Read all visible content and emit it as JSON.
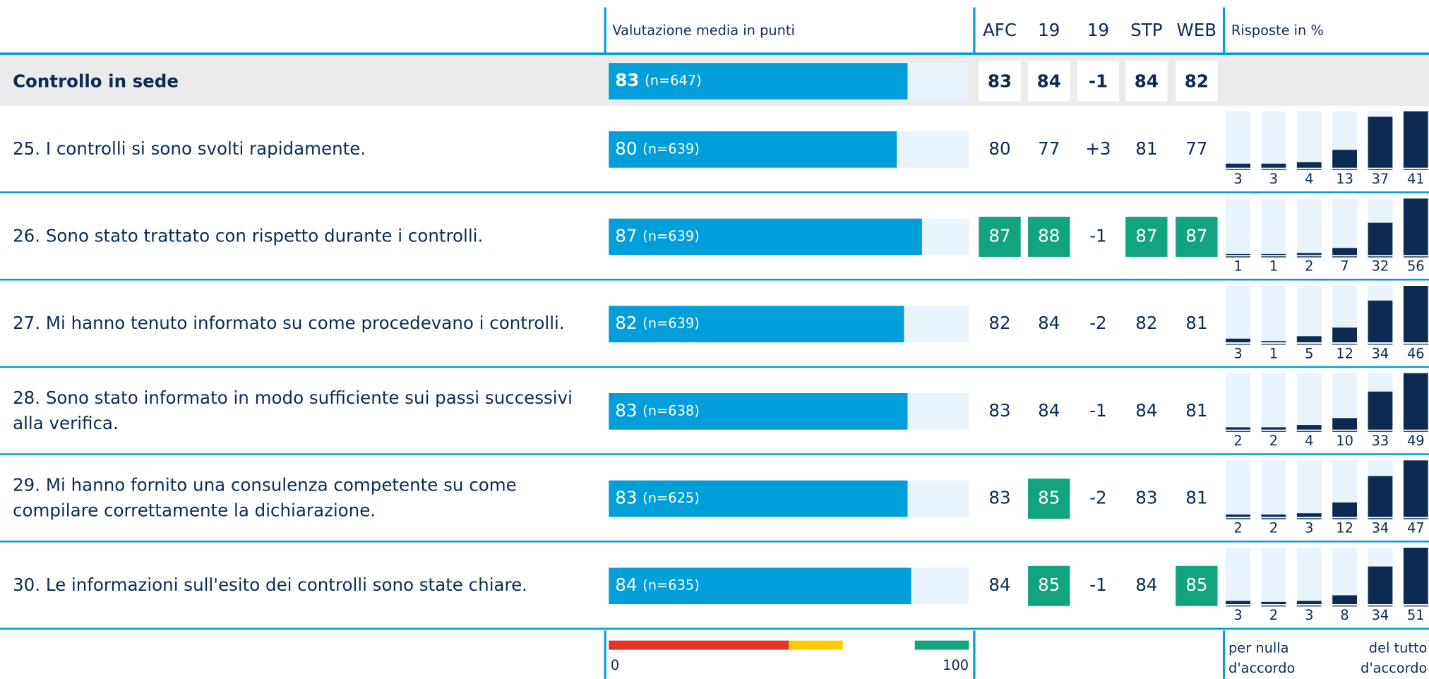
{
  "header": {
    "rating_label": "Valutazione media in punti",
    "columns": [
      "AFC",
      "19",
      "19",
      "STP",
      "WEB"
    ],
    "responses_label": "Risposte in %"
  },
  "section": {
    "title": "Controllo in sede",
    "score": 83,
    "n": "(n=647)",
    "columns": [
      83,
      84,
      "-1",
      84,
      82
    ]
  },
  "rows": [
    {
      "label": [
        "25. I controlli si sono svolti rapidamente."
      ],
      "score": 80,
      "n": "(n=639)",
      "columns": [
        80,
        77,
        "+3",
        81,
        77
      ],
      "highlight": [
        false,
        false,
        false,
        false,
        false
      ],
      "responses": [
        3,
        3,
        4,
        13,
        37,
        41
      ]
    },
    {
      "label": [
        "26. Sono stato trattato con rispetto durante i controlli."
      ],
      "score": 87,
      "n": "(n=639)",
      "columns": [
        87,
        88,
        "-1",
        87,
        87
      ],
      "highlight": [
        true,
        true,
        false,
        true,
        true
      ],
      "responses": [
        1,
        1,
        2,
        7,
        32,
        56
      ]
    },
    {
      "label": [
        "27. Mi hanno tenuto informato su come procedevano i controlli."
      ],
      "score": 82,
      "n": "(n=639)",
      "columns": [
        82,
        84,
        "-2",
        82,
        81
      ],
      "highlight": [
        false,
        false,
        false,
        false,
        false
      ],
      "responses": [
        3,
        1,
        5,
        12,
        34,
        46
      ]
    },
    {
      "label": [
        "28. Sono stato informato in modo sufficiente sui passi successivi",
        "alla verifica."
      ],
      "score": 83,
      "n": "(n=638)",
      "columns": [
        83,
        84,
        "-1",
        84,
        81
      ],
      "highlight": [
        false,
        false,
        false,
        false,
        false
      ],
      "responses": [
        2,
        2,
        4,
        10,
        33,
        49
      ]
    },
    {
      "label": [
        "29. Mi hanno fornito una consulenza competente su come",
        "compilare correttamente la dichiarazione."
      ],
      "score": 83,
      "n": "(n=625)",
      "columns": [
        83,
        85,
        "-2",
        83,
        81
      ],
      "highlight": [
        false,
        true,
        false,
        false,
        false
      ],
      "responses": [
        2,
        2,
        3,
        12,
        34,
        47
      ]
    },
    {
      "label": [
        "30. Le informazioni sull'esito dei controlli sono state chiare."
      ],
      "score": 84,
      "n": "(n=635)",
      "columns": [
        84,
        85,
        "-1",
        84,
        85
      ],
      "highlight": [
        false,
        true,
        false,
        false,
        true
      ],
      "responses": [
        3,
        2,
        3,
        8,
        34,
        51
      ]
    }
  ],
  "footer": {
    "scale_ticks": [
      0,
      100
    ],
    "scale_bands": [
      {
        "from": 0,
        "to": 50,
        "color": "#e63323"
      },
      {
        "from": 50,
        "to": 65,
        "color": "#ffcc00"
      },
      {
        "from": 85,
        "to": 100,
        "color": "#12a37f"
      }
    ],
    "left_label": [
      "per nulla",
      "d'accordo"
    ],
    "right_label": [
      "del tutto",
      "d'accordo"
    ]
  }
}
